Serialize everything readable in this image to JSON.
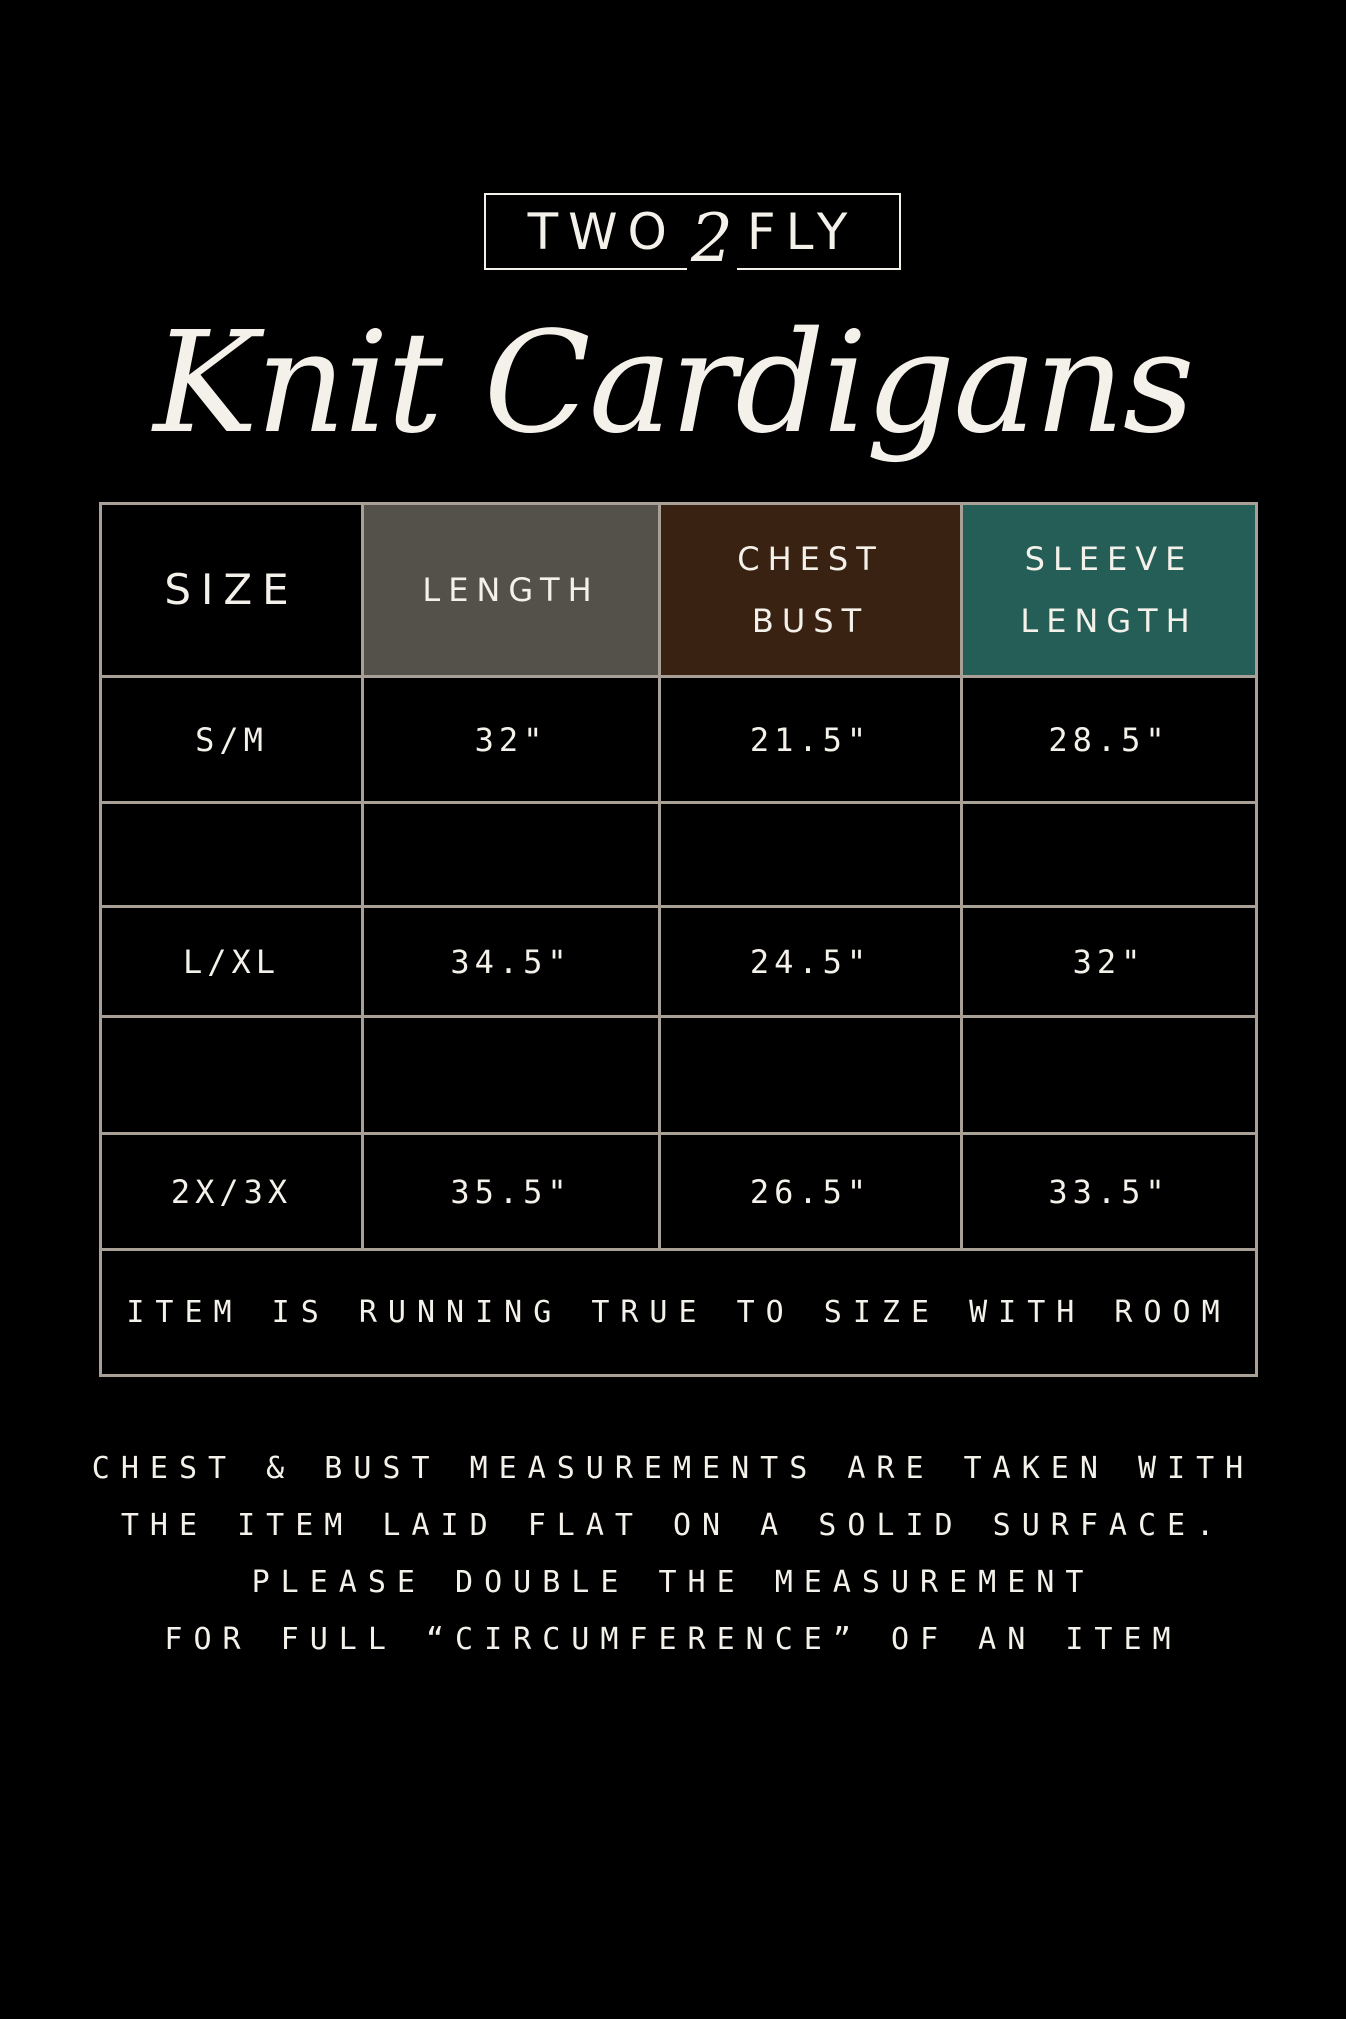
{
  "brand": {
    "logo_text": "TWO 2 FLY",
    "left": "TWO",
    "mid": "2",
    "right": "FLY"
  },
  "title": "Knit Cardigans",
  "table": {
    "headers": [
      {
        "lines": [
          "SIZE"
        ],
        "color": "#000000"
      },
      {
        "lines": [
          "LENGTH"
        ],
        "color": "#54504a"
      },
      {
        "lines": [
          "CHEST",
          "BUST"
        ],
        "color": "#3a2212"
      },
      {
        "lines": [
          "SLEEVE",
          "LENGTH"
        ],
        "color": "#255e57"
      }
    ],
    "rows": [
      [
        "S/M",
        "32\"",
        "21.5\"",
        "28.5\""
      ],
      [
        "",
        "",
        "",
        ""
      ],
      [
        "L/XL",
        "34.5\"",
        "24.5\"",
        "32\""
      ],
      [
        "",
        "",
        "",
        ""
      ],
      [
        "2X/3X",
        "35.5\"",
        "26.5\"",
        "33.5\""
      ]
    ],
    "footer": "ITEM IS RUNNING TRUE TO SIZE WITH ROOM"
  },
  "notes": [
    "CHEST & BUST MEASUREMENTS ARE TAKEN WITH",
    "THE ITEM LAID FLAT ON A SOLID SURFACE.",
    "PLEASE DOUBLE THE MEASUREMENT",
    "FOR FULL “CIRCUMFERENCE” OF AN ITEM"
  ]
}
